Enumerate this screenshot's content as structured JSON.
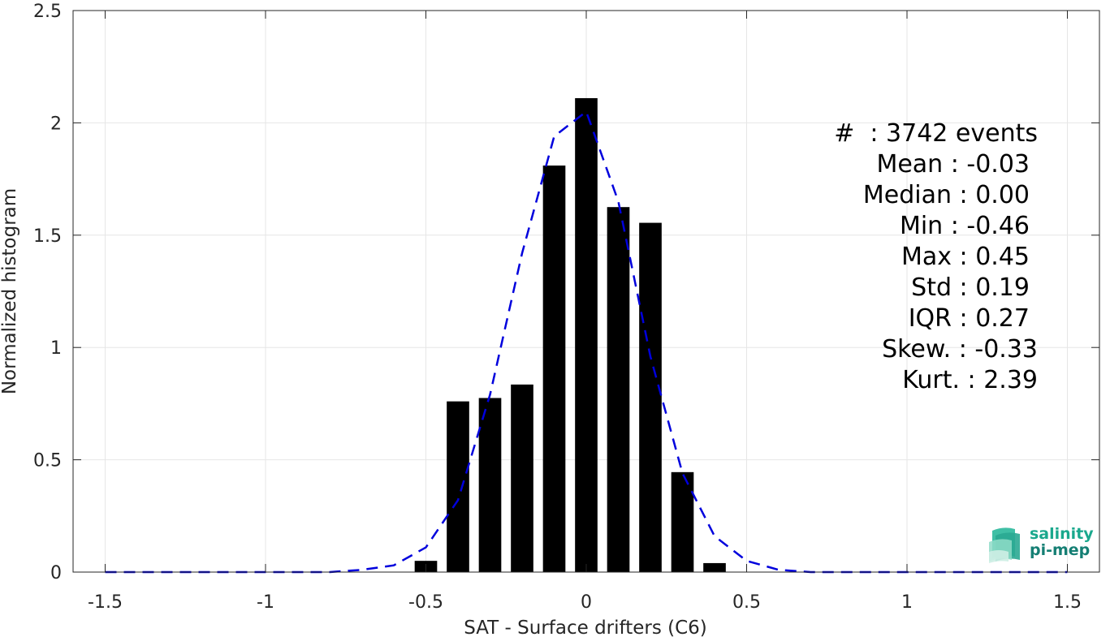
{
  "chart_data": {
    "type": "bar",
    "xlabel": "SAT - Surface drifters (C6)",
    "ylabel": "Normalized histogram",
    "xlim": [
      -1.6,
      1.6
    ],
    "ylim": [
      0,
      2.5
    ],
    "grid": true,
    "xticks": [
      -1.5,
      -1,
      -0.5,
      0,
      0.5,
      1,
      1.5
    ],
    "xtick_labels": [
      "-1.5",
      "-1",
      "-0.5",
      "0",
      "0.5",
      "1",
      "1.5"
    ],
    "yticks": [
      0,
      0.5,
      1,
      1.5,
      2,
      2.5
    ],
    "ytick_labels": [
      "0",
      "0.5",
      "1",
      "1.5",
      "2",
      "2.5"
    ],
    "bars": {
      "centers": [
        -0.5,
        -0.4,
        -0.3,
        -0.2,
        -0.1,
        0.0,
        0.1,
        0.2,
        0.3,
        0.4
      ],
      "values": [
        0.05,
        0.76,
        0.775,
        0.835,
        1.81,
        2.11,
        1.625,
        1.555,
        0.445,
        0.04
      ],
      "width": 0.07,
      "color": "#000000"
    },
    "fit_curve": {
      "style": "dashed",
      "color": "#0000dd",
      "x": [
        -1.5,
        -1.4,
        -1.3,
        -1.2,
        -1.1,
        -1.0,
        -0.9,
        -0.8,
        -0.7,
        -0.6,
        -0.5,
        -0.4,
        -0.3,
        -0.2,
        -0.1,
        0.0,
        0.1,
        0.2,
        0.3,
        0.4,
        0.5,
        0.6,
        0.7,
        0.8,
        0.9,
        1.0,
        1.1,
        1.2,
        1.3,
        1.4,
        1.5
      ],
      "y": [
        0,
        0,
        0,
        0,
        0,
        0,
        0,
        0,
        0.01,
        0.03,
        0.11,
        0.32,
        0.79,
        1.42,
        1.94,
        2.05,
        1.65,
        0.96,
        0.44,
        0.16,
        0.05,
        0.01,
        0,
        0,
        0,
        0,
        0,
        0,
        0,
        0,
        0
      ]
    }
  },
  "stats": [
    "#  : 3742 events",
    "Mean : -0.03",
    "Median : 0.00",
    "Min : -0.46",
    "Max : 0.45",
    "Std : 0.19",
    "IQR : 0.27",
    "Skew. : -0.33",
    "Kurt. : 2.39"
  ],
  "logo": {
    "line1": "salinity",
    "line2": "pi-mep",
    "icon": "salinity-wave-logo-icon"
  }
}
